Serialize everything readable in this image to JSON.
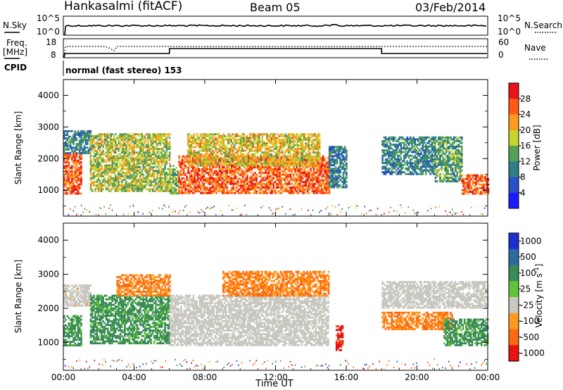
{
  "header": {
    "station": "Hankasalmi (fitACF)",
    "beam": "Beam 05",
    "date": "03/Feb/2014"
  },
  "noise_panel": {
    "left_label": "N.Sky",
    "right_label": "N.Search",
    "left_ticks": [
      "10^5",
      "10^0"
    ],
    "right_ticks": [
      "10^5",
      "10^0"
    ],
    "scale": "log"
  },
  "freq_panel": {
    "left_label_1": "Freq.",
    "left_label_2": "[MHz]",
    "right_label": "Nave",
    "left_ticks": [
      "18",
      "8"
    ],
    "right_ticks": [
      "60",
      "0"
    ],
    "freq_range_mhz": [
      8,
      18
    ],
    "nave_range": [
      0,
      60
    ]
  },
  "cpid_panel": {
    "label": "CPID",
    "text": "normal (fast stereo) 153"
  },
  "chart_data": [
    {
      "type": "heatmap",
      "title": "",
      "ylabel": "Slant Range [km]",
      "xlabel": "",
      "x_range_hours": [
        0,
        24
      ],
      "ylim": [
        180,
        4500
      ],
      "yticks": [
        1000,
        2000,
        3000,
        4000
      ],
      "colorbar": {
        "label": "Power [dB]",
        "ticks": [
          "4",
          "8",
          "12",
          "16",
          "20",
          "24",
          "28"
        ],
        "range": [
          0,
          30
        ],
        "colors": [
          "#1c1cff",
          "#2a52c8",
          "#2f7f86",
          "#56a05a",
          "#c6d42c",
          "#ff9a1f",
          "#ff5a14",
          "#e8141a"
        ]
      },
      "echo_regions": [
        {
          "t_start": 0.0,
          "t_end": 1.0,
          "r_min": 900,
          "r_max": 2200,
          "level_db": 24
        },
        {
          "t_start": 0.0,
          "t_end": 1.5,
          "r_min": 2200,
          "r_max": 2900,
          "level_db": 10
        },
        {
          "t_start": 1.5,
          "t_end": 6.0,
          "r_min": 1000,
          "r_max": 2800,
          "level_db": 16
        },
        {
          "t_start": 6.0,
          "t_end": 6.5,
          "r_min": 900,
          "r_max": 1800,
          "level_db": 14
        },
        {
          "t_start": 6.5,
          "t_end": 15.0,
          "r_min": 900,
          "r_max": 2100,
          "level_db": 24
        },
        {
          "t_start": 7.0,
          "t_end": 14.5,
          "r_min": 1800,
          "r_max": 2800,
          "level_db": 18
        },
        {
          "t_start": 15.0,
          "t_end": 16.0,
          "r_min": 1100,
          "r_max": 2400,
          "level_db": 10
        },
        {
          "t_start": 18.0,
          "t_end": 21.0,
          "r_min": 1500,
          "r_max": 2700,
          "level_db": 10
        },
        {
          "t_start": 21.0,
          "t_end": 22.5,
          "r_min": 1300,
          "r_max": 2700,
          "level_db": 12
        },
        {
          "t_start": 22.5,
          "t_end": 24.0,
          "r_min": 900,
          "r_max": 1500,
          "level_db": 24
        }
      ]
    },
    {
      "type": "heatmap",
      "title": "",
      "ylabel": "Slant Range [km]",
      "xlabel": "Time UT",
      "x_range_hours": [
        0,
        24
      ],
      "xticks": [
        "00:00",
        "04:00",
        "08:00",
        "12:00",
        "16:00",
        "20:00",
        "00:00"
      ],
      "ylim": [
        180,
        4500
      ],
      "yticks": [
        1000,
        2000,
        3000,
        4000
      ],
      "colorbar": {
        "label": "Velocity [m s^-1]",
        "label_main": "Velocity",
        "label_unit": "[m s",
        "label_exp": "-1",
        "label_close": "]",
        "ticks": [
          "1000",
          "500",
          "100",
          "25",
          "-25",
          "-100",
          "-500",
          "-1000"
        ],
        "colors": [
          "#1c2fd0",
          "#2d6aa0",
          "#3a8a5a",
          "#63c23a",
          "#c8c8c0",
          "#ff9a1f",
          "#ff6a10",
          "#e81414"
        ]
      },
      "echo_regions": [
        {
          "t_start": 0.0,
          "t_end": 1.0,
          "r_min": 900,
          "r_max": 1800,
          "velocity": 100
        },
        {
          "t_start": 0.0,
          "t_end": 1.5,
          "r_min": 2100,
          "r_max": 2700,
          "velocity": -25
        },
        {
          "t_start": 1.5,
          "t_end": 6.0,
          "r_min": 1000,
          "r_max": 2400,
          "velocity": 100
        },
        {
          "t_start": 3.0,
          "t_end": 6.0,
          "r_min": 2400,
          "r_max": 3000,
          "velocity": -100
        },
        {
          "t_start": 6.0,
          "t_end": 15.0,
          "r_min": 900,
          "r_max": 2400,
          "velocity": 0
        },
        {
          "t_start": 9.0,
          "t_end": 15.0,
          "r_min": 2400,
          "r_max": 3100,
          "velocity": -100
        },
        {
          "t_start": 15.4,
          "t_end": 15.8,
          "r_min": 800,
          "r_max": 1500,
          "velocity": -1000
        },
        {
          "t_start": 18.0,
          "t_end": 22.0,
          "r_min": 1400,
          "r_max": 1900,
          "velocity": -100
        },
        {
          "t_start": 18.0,
          "t_end": 24.0,
          "r_min": 2000,
          "r_max": 2800,
          "velocity": 0
        },
        {
          "t_start": 21.5,
          "t_end": 24.0,
          "r_min": 900,
          "r_max": 1700,
          "velocity": 100
        }
      ]
    }
  ]
}
